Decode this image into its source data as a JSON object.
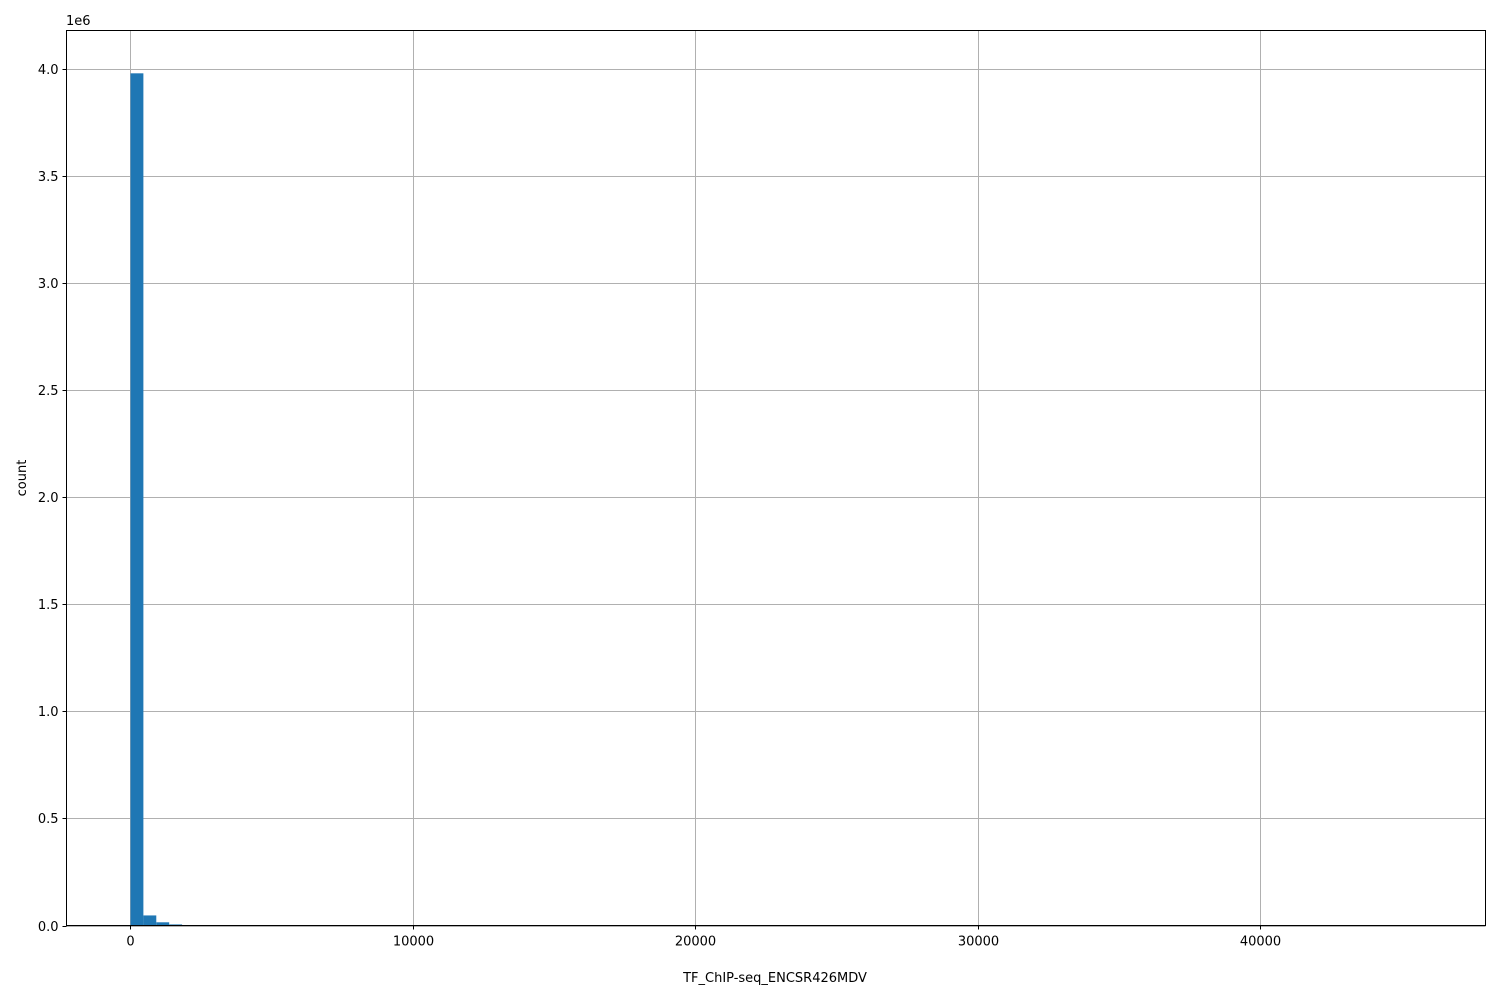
{
  "chart_data": {
    "type": "bar",
    "title": "",
    "xlabel": "TF_ChIP-seq_ENCSR426MDV",
    "ylabel": "count",
    "y_offset_label": "1e6",
    "xlim": [
      -2265,
      47965
    ],
    "ylim": [
      0,
      4180000
    ],
    "grid": true,
    "bar_color": "#1f77b4",
    "bin_width": 456.6,
    "bin_start": 0,
    "values": [
      3980000,
      47000,
      15000,
      5000,
      2000,
      1000
    ],
    "x_ticks": [
      0,
      10000,
      20000,
      30000,
      40000
    ],
    "x_tick_labels": [
      "0",
      "10000",
      "20000",
      "30000",
      "40000"
    ],
    "y_ticks": [
      0,
      500000,
      1000000,
      1500000,
      2000000,
      2500000,
      3000000,
      3500000,
      4000000
    ],
    "y_tick_labels": [
      "0.0",
      "0.5",
      "1.0",
      "1.5",
      "2.0",
      "2.5",
      "3.0",
      "3.5",
      "4.0"
    ]
  }
}
